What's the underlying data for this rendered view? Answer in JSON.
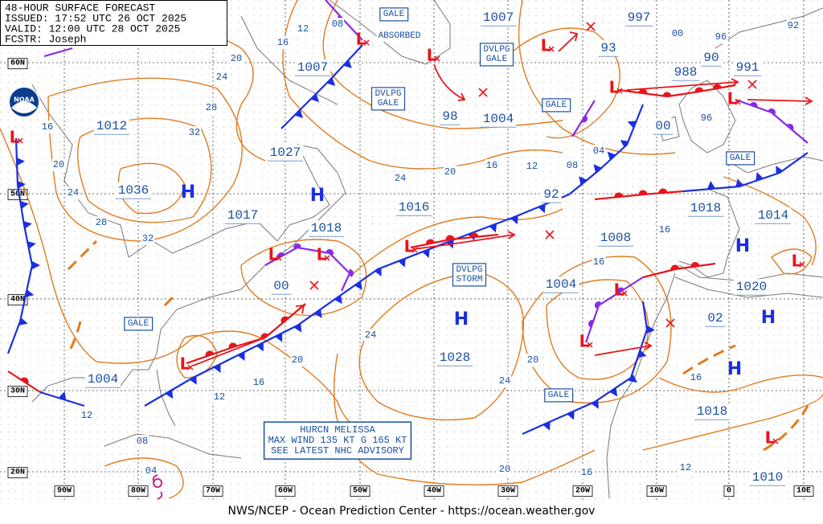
{
  "header": {
    "lines": [
      "48-HOUR SURFACE FORECAST",
      "ISSUED: 17:52 UTC 26 OCT 2025",
      "VALID: 12:00 UTC 28 OCT 2025",
      "FCSTR: Joseph"
    ]
  },
  "logo": "NOAA",
  "footer": "NWS/NCEP - Ocean Prediction Center - https://ocean.weather.gov",
  "lat_labels": [
    "60N",
    "50N",
    "40N",
    "30N",
    "20N"
  ],
  "lon_labels": [
    "90W",
    "80W",
    "70W",
    "60W",
    "50W",
    "40W",
    "30W",
    "20W",
    "10W",
    "0",
    "10E"
  ],
  "boxed_labels": [
    [
      "GALE"
    ],
    [
      "DVLPG",
      "GALE"
    ],
    [
      "DVLPG",
      "GALE"
    ],
    [
      "GALE"
    ],
    [
      "GALE"
    ],
    [
      "GALE"
    ],
    [
      "GALE"
    ],
    [
      "DVLPG",
      "STORM"
    ]
  ],
  "absorbed": "ABSORBED",
  "pressure_labels": [
    "1007",
    "997",
    "93",
    "1007",
    "988",
    "90",
    "991",
    "1012",
    "98",
    "1004",
    "00",
    "1027",
    "1036",
    "92",
    "1016",
    "1017",
    "1018",
    "1008",
    "1018",
    "1014",
    "00",
    "1004",
    "1020",
    "02",
    "1028",
    "1004",
    "1018",
    "1010"
  ],
  "isobar_labels": [
    "16",
    "12",
    "08",
    "20",
    "24",
    "28",
    "32",
    "16",
    "20",
    "24",
    "28",
    "32",
    "24",
    "20",
    "16",
    "12",
    "08",
    "04",
    "16",
    "16",
    "96",
    "92",
    "00",
    "96",
    "24",
    "20",
    "16",
    "12",
    "12",
    "20",
    "24",
    "16",
    "08",
    "04",
    "20",
    "16",
    "12"
  ],
  "highs": [
    "H",
    "H",
    "H",
    "H",
    "H",
    "H"
  ],
  "lows": [
    "L",
    "L",
    "L",
    "L",
    "L",
    "L",
    "L",
    "L",
    "L",
    "L",
    "L",
    "L",
    "L",
    "L"
  ],
  "advisory": [
    "HURCN MELISSA",
    "MAX WIND 135 KT G 165 KT",
    "SEE LATEST NHC ADVISORY"
  ]
}
